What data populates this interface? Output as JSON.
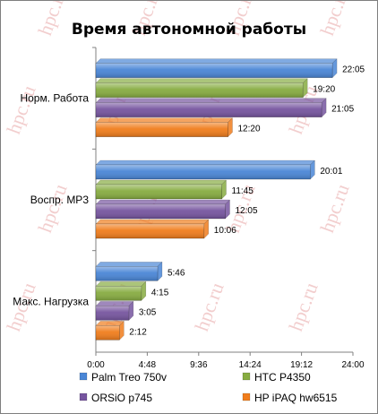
{
  "chart_data": {
    "type": "bar",
    "orientation": "horizontal",
    "title": "Время автономной работы",
    "categories": [
      "Норм. Работа",
      "Воспр. MP3",
      "Макс. Нагрузка"
    ],
    "series": [
      {
        "name": "Palm Treo 750v",
        "color": "#4a86d6",
        "values": [
          1325,
          1201,
          346
        ],
        "labels": [
          "22:05",
          "20:01",
          "5:46"
        ]
      },
      {
        "name": "HTC P4350",
        "color": "#87ac41",
        "values": [
          1160,
          705,
          255
        ],
        "labels": [
          "19:20",
          "11:45",
          "4:15"
        ]
      },
      {
        "name": "ORSiO p745",
        "color": "#76559f",
        "values": [
          1265,
          725,
          185
        ],
        "labels": [
          "21:05",
          "12:05",
          "3:05"
        ]
      },
      {
        "name": "HP iPAQ hw6515",
        "color": "#f07d1c",
        "values": [
          740,
          606,
          132
        ],
        "labels": [
          "12:20",
          "10:06",
          "2:12"
        ]
      }
    ],
    "x_axis": {
      "min": 0,
      "max": 1440,
      "ticks": [
        0,
        288,
        576,
        864,
        1152,
        1440
      ],
      "tick_labels": [
        "0:00",
        "4:48",
        "9:36",
        "14:24",
        "19:12",
        "24:00"
      ]
    },
    "legend_position": "bottom",
    "grid": false
  },
  "watermark_text": "hpc.ru"
}
